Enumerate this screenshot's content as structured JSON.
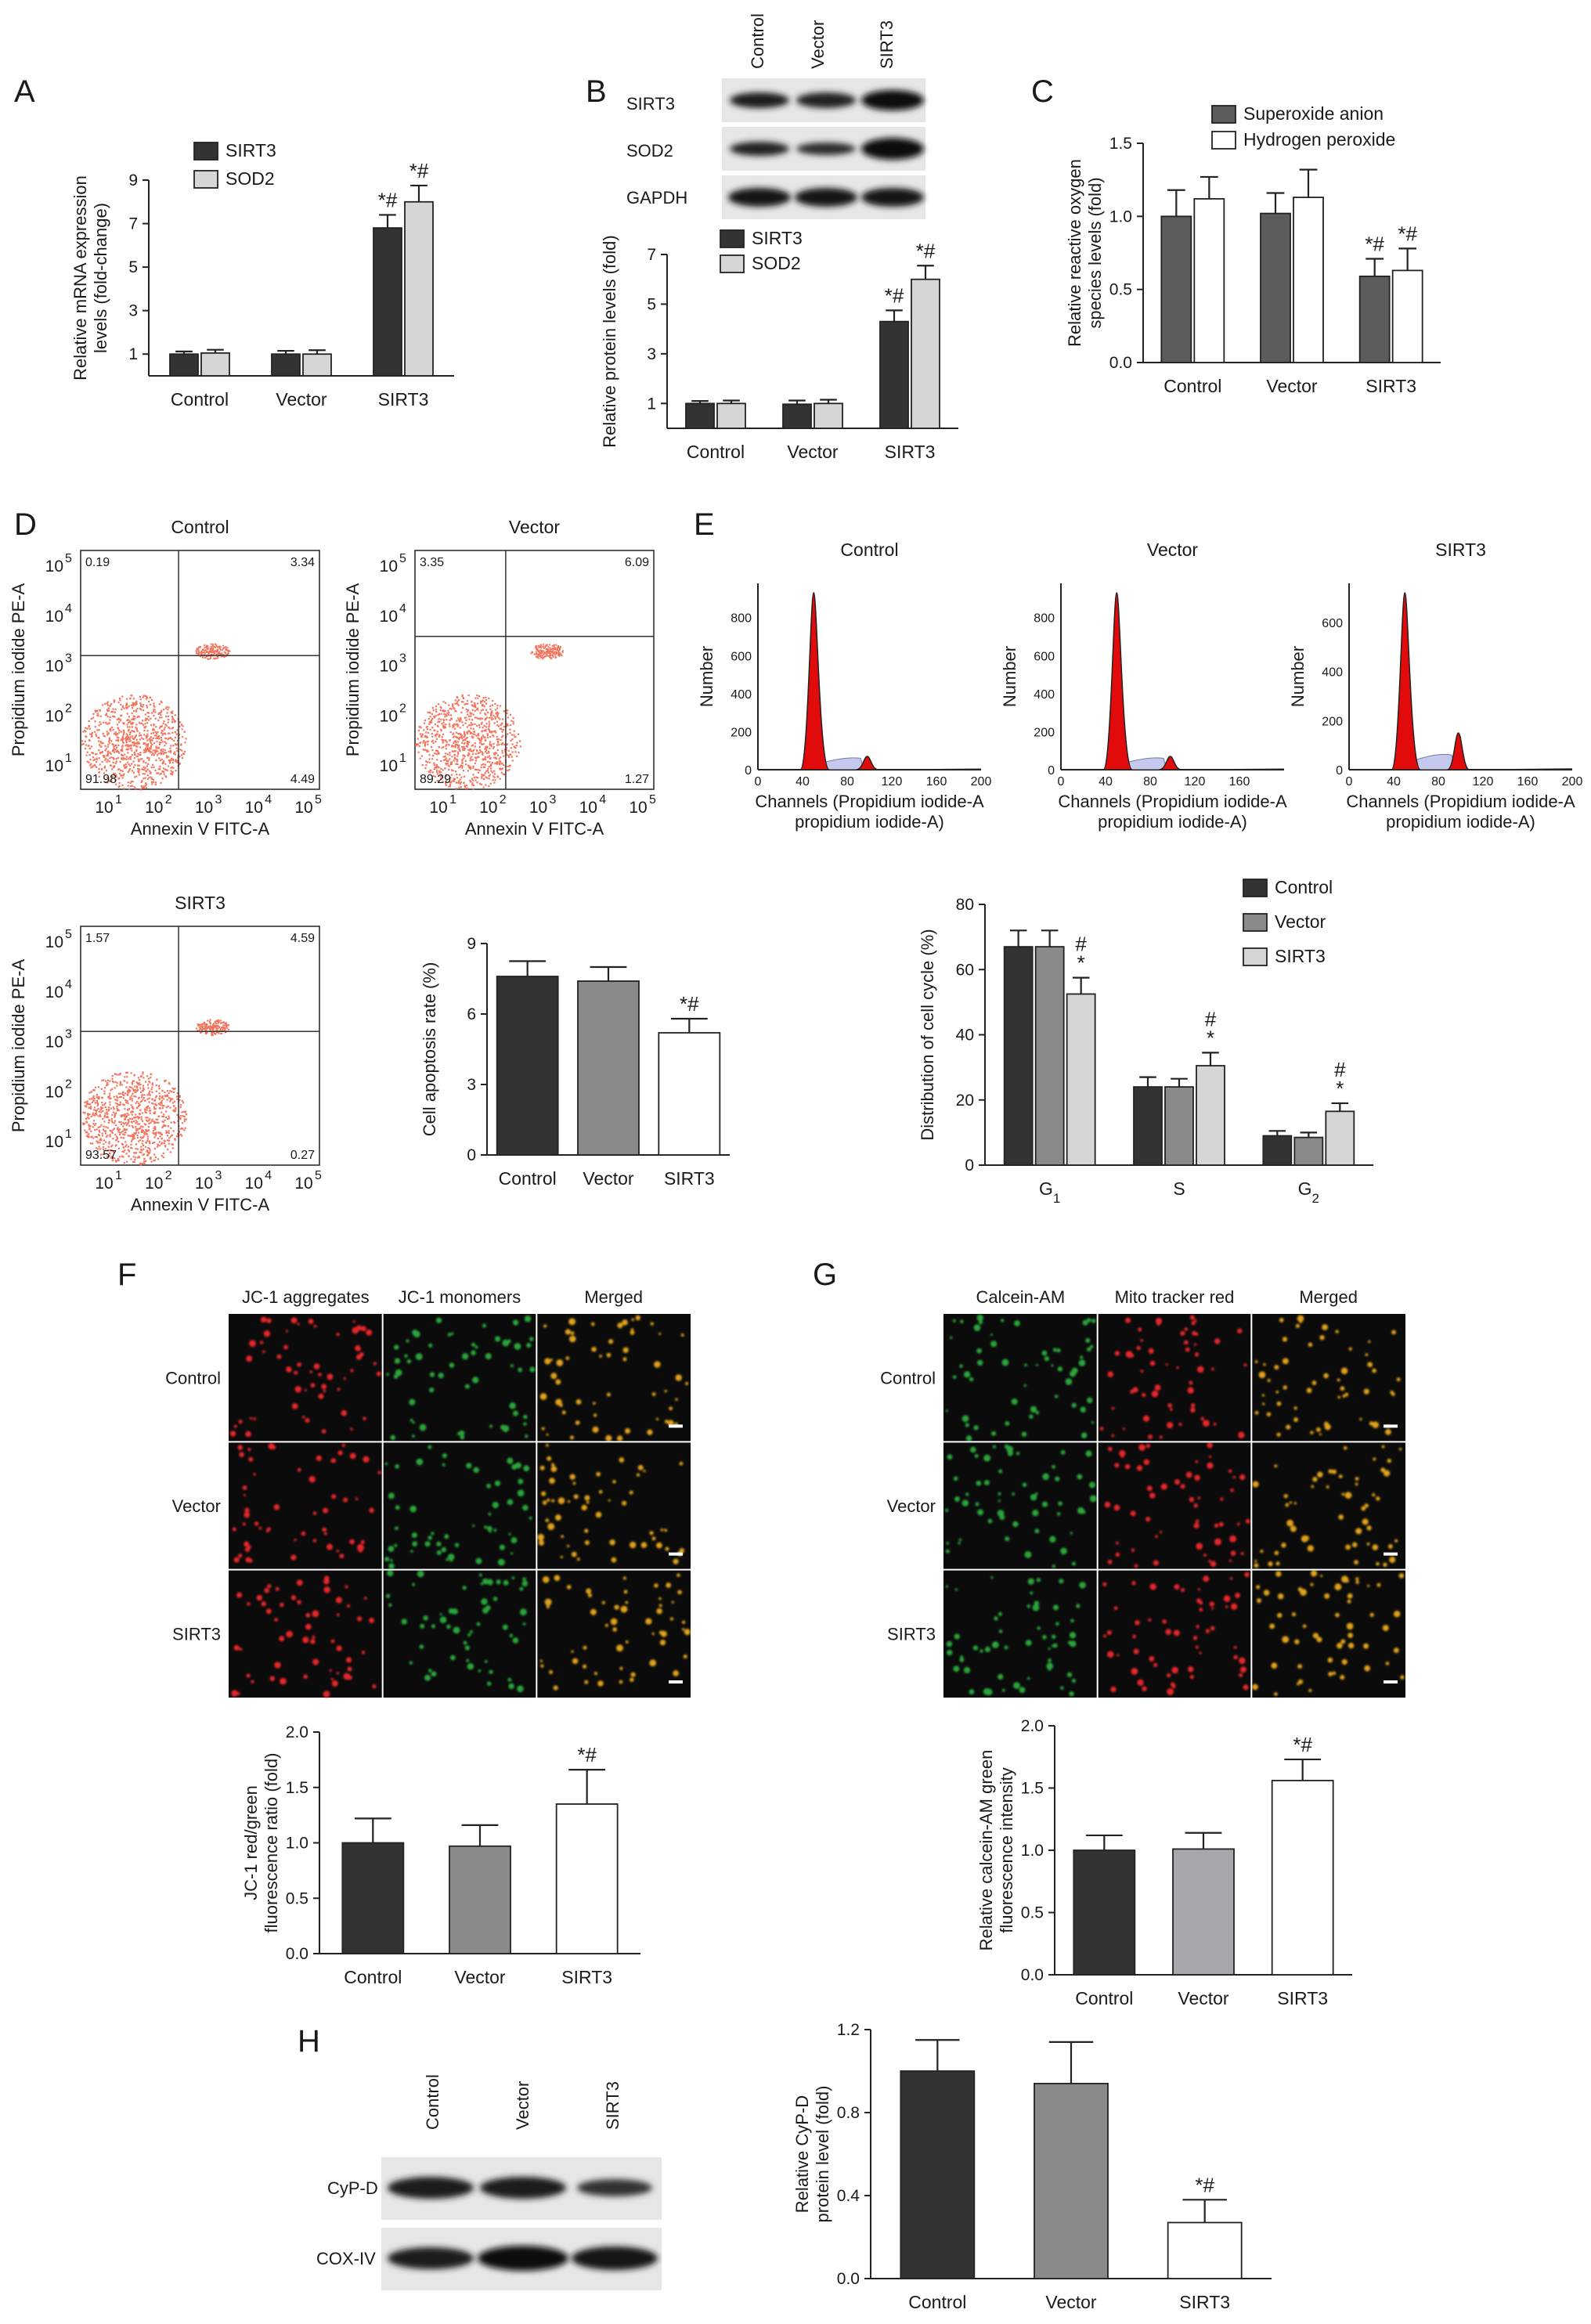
{
  "colors": {
    "dark": "#333333",
    "mid": "#8a8a8a",
    "light": "#d6d6d6",
    "white": "#ffffff",
    "apop_points": "#f2755f",
    "cc_fill": "#e10b0b",
    "cc_s_fill": "#c6c9ee",
    "jc_red": "#e8282a",
    "jc_green": "#2aa53a",
    "merged": "#e0a21a"
  },
  "panels": {
    "A": "A",
    "B": "B",
    "C": "C",
    "D": "D",
    "E": "E",
    "F": "F",
    "G": "G",
    "H": "H"
  },
  "blots": {
    "B": {
      "lanes": [
        "Control",
        "Vector",
        "SIRT3"
      ],
      "rows": [
        "SIRT3",
        "SOD2",
        "GAPDH"
      ]
    },
    "H": {
      "lanes": [
        "Control",
        "Vector",
        "SIRT3"
      ],
      "rows": [
        "CyP-D",
        "COX-IV"
      ]
    }
  },
  "flow": {
    "axis_x": "Annexin V FITC-A",
    "axis_y": "Propidium iodide PE-A",
    "ticks": [
      "10",
      "10",
      "10",
      "10",
      "10"
    ],
    "tick_exps": [
      "1",
      "2",
      "3",
      "4",
      "5"
    ],
    "plots": [
      {
        "title": "Control",
        "q": [
          "0.19",
          "3.34",
          "91.98",
          "4.49"
        ]
      },
      {
        "title": "Vector",
        "q": [
          "3.35",
          "6.09",
          "89.29",
          "1.27"
        ]
      },
      {
        "title": "SIRT3",
        "q": [
          "1.57",
          "4.59",
          "93.57",
          "0.27"
        ]
      }
    ]
  },
  "cellcycle": {
    "xlabel_1": "Channels (Propidium iodide-A",
    "xlabel_2": "propidium iodide-A)",
    "ylabel": "Number",
    "plots": [
      {
        "title": "Control",
        "yticks": [
          "0",
          "200",
          "400",
          "600",
          "800"
        ],
        "ymax": 980,
        "xticks": [
          "0",
          "40",
          "80",
          "120",
          "160",
          "200"
        ]
      },
      {
        "title": "Vector",
        "yticks": [
          "0",
          "200",
          "400",
          "600",
          "800"
        ],
        "ymax": 980,
        "xticks": [
          "0",
          "40",
          "80",
          "120",
          "160"
        ]
      },
      {
        "title": "SIRT3",
        "yticks": [
          "0",
          "200",
          "400",
          "600"
        ],
        "ymax": 760,
        "xticks": [
          "0",
          "40",
          "80",
          "120",
          "160",
          "200"
        ]
      }
    ]
  },
  "micro": {
    "F": {
      "cols": [
        "JC-1 aggregates",
        "JC-1 monomers",
        "Merged"
      ],
      "rows": [
        "Control",
        "Vector",
        "SIRT3"
      ]
    },
    "G": {
      "cols": [
        "Calcein-AM",
        "Mito tracker red",
        "Merged"
      ],
      "rows": [
        "Control",
        "Vector",
        "SIRT3"
      ]
    }
  },
  "chart_data": [
    {
      "id": "A",
      "type": "bar",
      "categories": [
        "Control",
        "Vector",
        "SIRT3"
      ],
      "series": [
        {
          "name": "SIRT3",
          "values": [
            1.0,
            1.0,
            6.8
          ],
          "err": [
            0.12,
            0.15,
            0.6
          ]
        },
        {
          "name": "SOD2",
          "values": [
            1.05,
            1.0,
            8.0
          ],
          "err": [
            0.15,
            0.18,
            0.75
          ]
        }
      ],
      "ylabel": [
        "Relative mRNA expression",
        "levels (fold-change)"
      ],
      "ylim": [
        0,
        9
      ],
      "yticks": [
        1,
        3,
        5,
        7,
        9
      ],
      "annotations": [
        {
          "cat": 2,
          "series": 0,
          "text": "*#"
        },
        {
          "cat": 2,
          "series": 1,
          "text": "*#"
        }
      ]
    },
    {
      "id": "B",
      "type": "bar",
      "categories": [
        "Control",
        "Vector",
        "SIRT3"
      ],
      "series": [
        {
          "name": "SIRT3",
          "values": [
            1.0,
            0.97,
            4.3
          ],
          "err": [
            0.1,
            0.15,
            0.45
          ]
        },
        {
          "name": "SOD2",
          "values": [
            1.0,
            1.0,
            6.0
          ],
          "err": [
            0.12,
            0.15,
            0.55
          ]
        }
      ],
      "ylabel": [
        "Relative protein levels (fold)"
      ],
      "ylim": [
        0,
        7
      ],
      "yticks": [
        1,
        3,
        5,
        7
      ],
      "annotations": [
        {
          "cat": 2,
          "series": 0,
          "text": "*#"
        },
        {
          "cat": 2,
          "series": 1,
          "text": "*#"
        }
      ]
    },
    {
      "id": "C",
      "type": "bar",
      "categories": [
        "Control",
        "Vector",
        "SIRT3"
      ],
      "series": [
        {
          "name": "Superoxide anion",
          "values": [
            1.0,
            1.02,
            0.59
          ],
          "err": [
            0.18,
            0.14,
            0.12
          ]
        },
        {
          "name": "Hydrogen peroxide",
          "values": [
            1.12,
            1.13,
            0.63
          ],
          "err": [
            0.15,
            0.19,
            0.15
          ]
        }
      ],
      "ylabel": [
        "Relative reactive oxygen",
        "species levels (fold)"
      ],
      "ylim": [
        0,
        1.5
      ],
      "yticks": [
        0.0,
        0.5,
        1.0,
        1.5
      ],
      "ytick_labels": [
        "0.0",
        "0.5",
        "1.0",
        "1.5"
      ],
      "annotations": [
        {
          "cat": 2,
          "series": 0,
          "text": "*#"
        },
        {
          "cat": 2,
          "series": 1,
          "text": "*#"
        }
      ]
    },
    {
      "id": "D",
      "type": "bar",
      "categories": [
        "Control",
        "Vector",
        "SIRT3"
      ],
      "series": [
        {
          "name": "",
          "values": [
            7.6,
            7.4,
            5.2
          ],
          "err": [
            0.65,
            0.6,
            0.6
          ]
        }
      ],
      "ylabel": [
        "Cell apoptosis rate (%)"
      ],
      "ylim": [
        0,
        9
      ],
      "yticks": [
        0,
        3,
        6,
        9
      ],
      "annotations": [
        {
          "cat": 2,
          "series": 0,
          "text": "*#"
        }
      ]
    },
    {
      "id": "E",
      "type": "bar",
      "categories": [
        "G1",
        "S",
        "G2"
      ],
      "series": [
        {
          "name": "Control",
          "values": [
            67,
            24,
            9
          ],
          "err": [
            5,
            3,
            1.5
          ]
        },
        {
          "name": "Vector",
          "values": [
            67,
            24,
            8.5
          ],
          "err": [
            5,
            2.5,
            1.5
          ]
        },
        {
          "name": "SIRT3",
          "values": [
            52.5,
            30.5,
            16.5
          ],
          "err": [
            5,
            4,
            2.5
          ]
        }
      ],
      "ylabel": [
        "Distribution of cell cycle (%)"
      ],
      "ylim": [
        0,
        80
      ],
      "yticks": [
        0,
        20,
        40,
        60,
        80
      ],
      "annotations": [
        {
          "cat": 0,
          "series": 2,
          "text": "#*"
        },
        {
          "cat": 1,
          "series": 2,
          "text": "#*"
        },
        {
          "cat": 2,
          "series": 2,
          "text": "#*"
        }
      ]
    },
    {
      "id": "F",
      "type": "bar",
      "categories": [
        "Control",
        "Vector",
        "SIRT3"
      ],
      "series": [
        {
          "name": "",
          "values": [
            1.0,
            0.97,
            1.35
          ],
          "err": [
            0.22,
            0.19,
            0.31
          ]
        }
      ],
      "ylabel": [
        "JC-1 red/green",
        "fluorescence ratio (fold)"
      ],
      "ylim": [
        0,
        2.0
      ],
      "yticks": [
        0.0,
        0.5,
        1.0,
        1.5,
        2.0
      ],
      "ytick_labels": [
        "0.0",
        "0.5",
        "1.0",
        "1.5",
        "2.0"
      ],
      "annotations": [
        {
          "cat": 2,
          "series": 0,
          "text": "*#"
        }
      ]
    },
    {
      "id": "G",
      "type": "bar",
      "categories": [
        "Control",
        "Vector",
        "SIRT3"
      ],
      "series": [
        {
          "name": "",
          "values": [
            1.0,
            1.01,
            1.56
          ],
          "err": [
            0.12,
            0.13,
            0.17
          ]
        }
      ],
      "ylabel": [
        "Relative calcein-AM green",
        "fluorescence intensity"
      ],
      "ylim": [
        0,
        2.0
      ],
      "yticks": [
        0.0,
        0.5,
        1.0,
        1.5,
        2.0
      ],
      "ytick_labels": [
        "0.0",
        "0.5",
        "1.0",
        "1.5",
        "2.0"
      ],
      "annotations": [
        {
          "cat": 2,
          "series": 0,
          "text": "*#"
        }
      ]
    },
    {
      "id": "H",
      "type": "bar",
      "categories": [
        "Control",
        "Vector",
        "SIRT3"
      ],
      "series": [
        {
          "name": "",
          "values": [
            1.0,
            0.94,
            0.27
          ],
          "err": [
            0.15,
            0.2,
            0.11
          ]
        }
      ],
      "ylabel": [
        "Relative CyP-D",
        "protein level (fold)"
      ],
      "ylim": [
        0,
        1.2
      ],
      "yticks": [
        0.0,
        0.4,
        0.8,
        1.2
      ],
      "ytick_labels": [
        "0.0",
        "0.4",
        "0.8",
        "1.2"
      ],
      "annotations": [
        {
          "cat": 2,
          "series": 0,
          "text": "*#"
        }
      ]
    }
  ]
}
